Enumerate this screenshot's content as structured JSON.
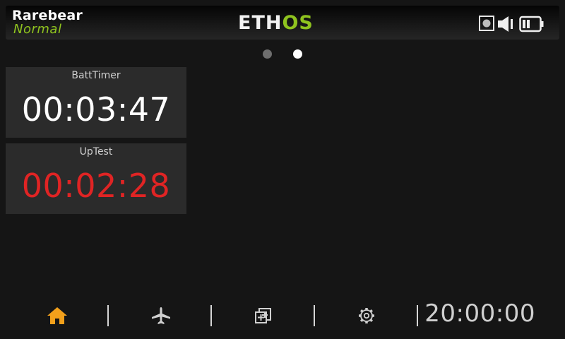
{
  "header": {
    "model_name": "Rarebear",
    "flight_mode": "Normal",
    "logo_eth": "ETH",
    "logo_os": "OS",
    "status_icons": [
      "record-icon",
      "speaker-icon",
      "battery-icon"
    ]
  },
  "pages": {
    "count": 2,
    "active_index": 1
  },
  "widgets": [
    {
      "label": "BattTimer",
      "value": "00:03:47",
      "alert": false
    },
    {
      "label": "UpTest",
      "value": "00:02:28",
      "alert": true
    }
  ],
  "nav": {
    "items": [
      "home-icon",
      "airplane-icon",
      "add-widget-icon",
      "settings-icon"
    ],
    "clock": "20:00:00"
  },
  "colors": {
    "accent": "#8fc31f",
    "home_active": "#f2a01b",
    "alert": "#e02424",
    "widget_bg": "#2b2b2b",
    "background": "#151515"
  }
}
